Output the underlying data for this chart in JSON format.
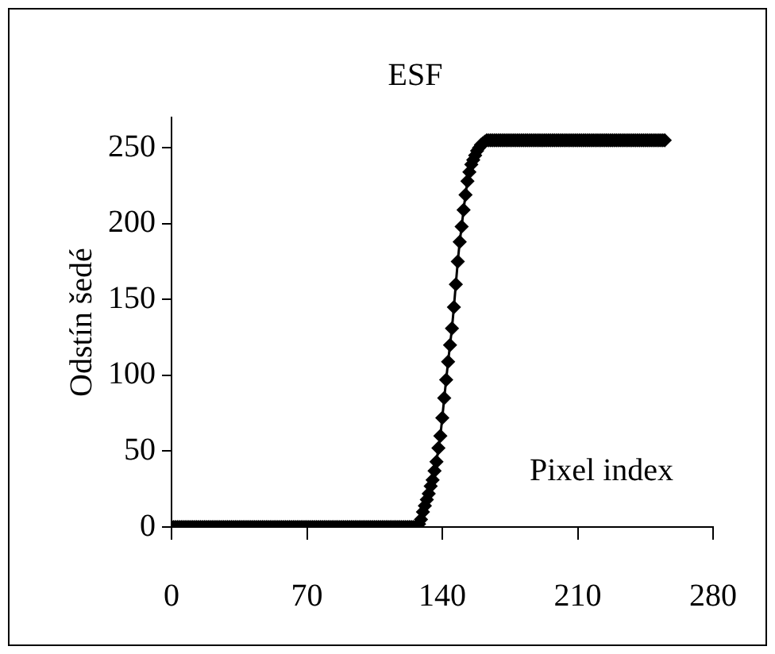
{
  "chart_data": {
    "type": "line",
    "title": "ESF",
    "xlabel": "Pixel index",
    "ylabel": "Odstín šedé",
    "xlim": [
      0,
      280
    ],
    "xticks": [
      0,
      70,
      140,
      210,
      280
    ],
    "ylim": [
      0,
      270
    ],
    "yticks": [
      0,
      50,
      100,
      150,
      200,
      250
    ],
    "grid": false,
    "legend": false,
    "marker": "diamond",
    "line_style": "solid",
    "series": [
      {
        "color": "#000000",
        "x": [
          0,
          1,
          2,
          3,
          4,
          5,
          6,
          7,
          8,
          9,
          10,
          11,
          12,
          13,
          14,
          15,
          16,
          17,
          18,
          19,
          20,
          21,
          22,
          23,
          24,
          25,
          26,
          27,
          28,
          29,
          30,
          31,
          32,
          33,
          34,
          35,
          36,
          37,
          38,
          39,
          40,
          41,
          42,
          43,
          44,
          45,
          46,
          47,
          48,
          49,
          50,
          51,
          52,
          53,
          54,
          55,
          56,
          57,
          58,
          59,
          60,
          61,
          62,
          63,
          64,
          65,
          66,
          67,
          68,
          69,
          70,
          71,
          72,
          73,
          74,
          75,
          76,
          77,
          78,
          79,
          80,
          81,
          82,
          83,
          84,
          85,
          86,
          87,
          88,
          89,
          90,
          91,
          92,
          93,
          94,
          95,
          96,
          97,
          98,
          99,
          100,
          101,
          102,
          103,
          104,
          105,
          106,
          107,
          108,
          109,
          110,
          111,
          112,
          113,
          114,
          115,
          116,
          117,
          118,
          119,
          120,
          121,
          122,
          123,
          124,
          125,
          126,
          127,
          128,
          129,
          130,
          131,
          132,
          133,
          134,
          135,
          136,
          137,
          138,
          139,
          140,
          141,
          142,
          143,
          144,
          145,
          146,
          147,
          148,
          149,
          150,
          151,
          152,
          153,
          154,
          155,
          156,
          157,
          158,
          159,
          160,
          161,
          162,
          163,
          164,
          165,
          166,
          167,
          168,
          169,
          170,
          171,
          172,
          173,
          174,
          175,
          176,
          177,
          178,
          179,
          180,
          181,
          182,
          183,
          184,
          185,
          186,
          187,
          188,
          189,
          190,
          191,
          192,
          193,
          194,
          195,
          196,
          197,
          198,
          199,
          200,
          201,
          202,
          203,
          204,
          205,
          206,
          207,
          208,
          209,
          210,
          211,
          212,
          213,
          214,
          215,
          216,
          217,
          218,
          219,
          220,
          221,
          222,
          223,
          224,
          225,
          226,
          227,
          228,
          229,
          230,
          231,
          232,
          233,
          234,
          235,
          236,
          237,
          238,
          239,
          240,
          241,
          242,
          243,
          244,
          245,
          246,
          247,
          248,
          249,
          250,
          251,
          252,
          253,
          254,
          255
        ],
        "values": [
          0,
          0,
          0,
          0,
          0,
          0,
          0,
          0,
          0,
          0,
          0,
          0,
          0,
          0,
          0,
          0,
          0,
          0,
          0,
          0,
          0,
          0,
          0,
          0,
          0,
          0,
          0,
          0,
          0,
          0,
          0,
          0,
          0,
          0,
          0,
          0,
          0,
          0,
          0,
          0,
          0,
          0,
          0,
          0,
          0,
          0,
          0,
          0,
          0,
          0,
          0,
          0,
          0,
          0,
          0,
          0,
          0,
          0,
          0,
          0,
          0,
          0,
          0,
          0,
          0,
          0,
          0,
          0,
          0,
          0,
          0,
          0,
          0,
          0,
          0,
          0,
          0,
          0,
          0,
          0,
          0,
          0,
          0,
          0,
          0,
          0,
          0,
          0,
          0,
          0,
          0,
          0,
          0,
          0,
          0,
          0,
          0,
          0,
          0,
          0,
          0,
          0,
          0,
          0,
          0,
          0,
          0,
          0,
          0,
          0,
          0,
          0,
          0,
          0,
          0,
          0,
          0,
          0,
          0,
          0,
          0,
          0,
          0,
          0,
          0,
          0,
          0,
          0,
          2,
          5,
          10,
          14,
          18,
          22,
          27,
          31,
          37,
          43,
          52,
          60,
          72,
          85,
          97,
          109,
          120,
          131,
          145,
          160,
          175,
          188,
          198,
          209,
          219,
          228,
          234,
          239,
          242,
          245,
          248,
          250,
          252,
          253,
          254,
          255,
          255,
          255,
          255,
          255,
          255,
          255,
          255,
          255,
          255,
          255,
          255,
          255,
          255,
          255,
          255,
          255,
          255,
          255,
          255,
          255,
          255,
          255,
          255,
          255,
          255,
          255,
          255,
          255,
          255,
          255,
          255,
          255,
          255,
          255,
          255,
          255,
          255,
          255,
          255,
          255,
          255,
          255,
          255,
          255,
          255,
          255,
          255,
          255,
          255,
          255,
          255,
          255,
          255,
          255,
          255,
          255,
          255,
          255,
          255,
          255,
          255,
          255,
          255,
          255,
          255,
          255,
          255,
          255,
          255,
          255,
          255,
          255,
          255,
          255,
          255,
          255,
          255,
          255,
          255,
          255,
          255,
          255,
          255,
          255,
          255,
          255,
          255,
          255,
          255,
          255,
          255,
          255
        ]
      }
    ]
  }
}
